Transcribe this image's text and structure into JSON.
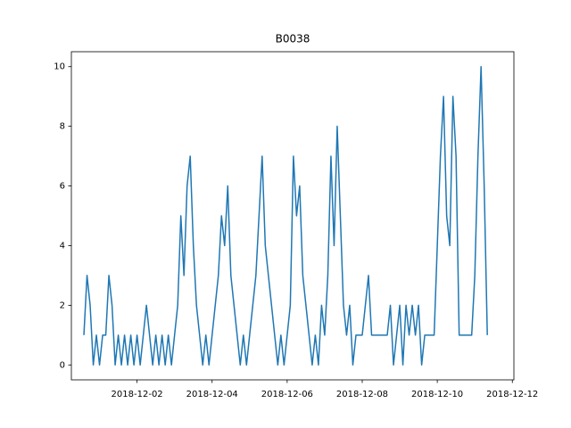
{
  "chart_data": {
    "type": "line",
    "title": "B0038",
    "color": "#1f77b4",
    "x": [
      "2018-11-30 14:00",
      "2018-11-30 16:00",
      "2018-11-30 18:00",
      "2018-11-30 20:00",
      "2018-11-30 22:00",
      "2018-12-01 00:00",
      "2018-12-01 02:00",
      "2018-12-01 04:00",
      "2018-12-01 06:00",
      "2018-12-01 08:00",
      "2018-12-01 10:00",
      "2018-12-01 12:00",
      "2018-12-01 14:00",
      "2018-12-01 16:00",
      "2018-12-01 18:00",
      "2018-12-01 20:00",
      "2018-12-01 22:00",
      "2018-12-02 00:00",
      "2018-12-02 02:00",
      "2018-12-02 04:00",
      "2018-12-02 06:00",
      "2018-12-02 08:00",
      "2018-12-02 10:00",
      "2018-12-02 12:00",
      "2018-12-02 14:00",
      "2018-12-02 16:00",
      "2018-12-02 18:00",
      "2018-12-02 20:00",
      "2018-12-02 22:00",
      "2018-12-03 00:00",
      "2018-12-03 02:00",
      "2018-12-03 04:00",
      "2018-12-03 06:00",
      "2018-12-03 08:00",
      "2018-12-03 10:00",
      "2018-12-03 12:00",
      "2018-12-03 14:00",
      "2018-12-03 16:00",
      "2018-12-03 18:00",
      "2018-12-03 20:00",
      "2018-12-03 22:00",
      "2018-12-04 00:00",
      "2018-12-04 02:00",
      "2018-12-04 04:00",
      "2018-12-04 06:00",
      "2018-12-04 08:00",
      "2018-12-04 10:00",
      "2018-12-04 12:00",
      "2018-12-04 14:00",
      "2018-12-04 16:00",
      "2018-12-04 18:00",
      "2018-12-04 20:00",
      "2018-12-04 22:00",
      "2018-12-05 00:00",
      "2018-12-05 02:00",
      "2018-12-05 04:00",
      "2018-12-05 06:00",
      "2018-12-05 08:00",
      "2018-12-05 10:00",
      "2018-12-05 12:00",
      "2018-12-05 14:00",
      "2018-12-05 16:00",
      "2018-12-05 18:00",
      "2018-12-05 20:00",
      "2018-12-05 22:00",
      "2018-12-06 00:00",
      "2018-12-06 02:00",
      "2018-12-06 04:00",
      "2018-12-06 06:00",
      "2018-12-06 08:00",
      "2018-12-06 10:00",
      "2018-12-06 12:00",
      "2018-12-06 14:00",
      "2018-12-06 16:00",
      "2018-12-06 18:00",
      "2018-12-06 20:00",
      "2018-12-06 22:00",
      "2018-12-07 00:00",
      "2018-12-07 02:00",
      "2018-12-07 04:00",
      "2018-12-07 06:00",
      "2018-12-07 08:00",
      "2018-12-07 10:00",
      "2018-12-07 12:00",
      "2018-12-07 14:00",
      "2018-12-07 16:00",
      "2018-12-07 18:00",
      "2018-12-07 20:00",
      "2018-12-07 22:00",
      "2018-12-08 00:00",
      "2018-12-08 02:00",
      "2018-12-08 04:00",
      "2018-12-08 06:00",
      "2018-12-08 08:00",
      "2018-12-08 10:00",
      "2018-12-08 12:00",
      "2018-12-08 14:00",
      "2018-12-08 16:00",
      "2018-12-08 18:00",
      "2018-12-08 20:00",
      "2018-12-08 22:00",
      "2018-12-09 00:00",
      "2018-12-09 02:00",
      "2018-12-09 04:00",
      "2018-12-09 06:00",
      "2018-12-09 08:00",
      "2018-12-09 10:00",
      "2018-12-09 12:00",
      "2018-12-09 14:00",
      "2018-12-09 16:00",
      "2018-12-09 18:00",
      "2018-12-09 20:00",
      "2018-12-09 22:00",
      "2018-12-10 00:00",
      "2018-12-10 02:00",
      "2018-12-10 04:00",
      "2018-12-10 06:00",
      "2018-12-10 08:00",
      "2018-12-10 10:00",
      "2018-12-10 12:00",
      "2018-12-10 14:00",
      "2018-12-10 16:00",
      "2018-12-10 18:00",
      "2018-12-10 20:00",
      "2018-12-10 22:00",
      "2018-12-11 00:00",
      "2018-12-11 02:00",
      "2018-12-11 04:00",
      "2018-12-11 06:00",
      "2018-12-11 08:00"
    ],
    "values": [
      1,
      3,
      2,
      0,
      1,
      0,
      1,
      1,
      3,
      2,
      0,
      1,
      0,
      1,
      0,
      1,
      0,
      1,
      0,
      1,
      2,
      1,
      0,
      1,
      0,
      1,
      0,
      1,
      0,
      1,
      2,
      5,
      3,
      6,
      7,
      4,
      2,
      1,
      0,
      1,
      0,
      1,
      2,
      3,
      5,
      4,
      6,
      3,
      2,
      1,
      0,
      1,
      0,
      1,
      2,
      3,
      5,
      7,
      4,
      3,
      2,
      1,
      0,
      1,
      0,
      1,
      2,
      7,
      5,
      6,
      3,
      2,
      1,
      0,
      1,
      0,
      2,
      1,
      3,
      7,
      4,
      8,
      5,
      2,
      1,
      2,
      0,
      1,
      1,
      1,
      2,
      3,
      1,
      1,
      1,
      1,
      1,
      1,
      2,
      0,
      1,
      2,
      0,
      2,
      1,
      2,
      1,
      2,
      0,
      1,
      1,
      1,
      1,
      4,
      7,
      9,
      5,
      4,
      9,
      7,
      1,
      1,
      1,
      1,
      1,
      3,
      7,
      10,
      6,
      1
    ],
    "xlim": [
      "2018-11-30 06:00",
      "2018-12-12 01:00"
    ],
    "xticks": [
      "2018-12-02",
      "2018-12-04",
      "2018-12-06",
      "2018-12-08",
      "2018-12-10",
      "2018-12-12"
    ],
    "ylim": [
      -0.5,
      10.5
    ],
    "yticks": [
      0,
      2,
      4,
      6,
      8,
      10
    ]
  }
}
